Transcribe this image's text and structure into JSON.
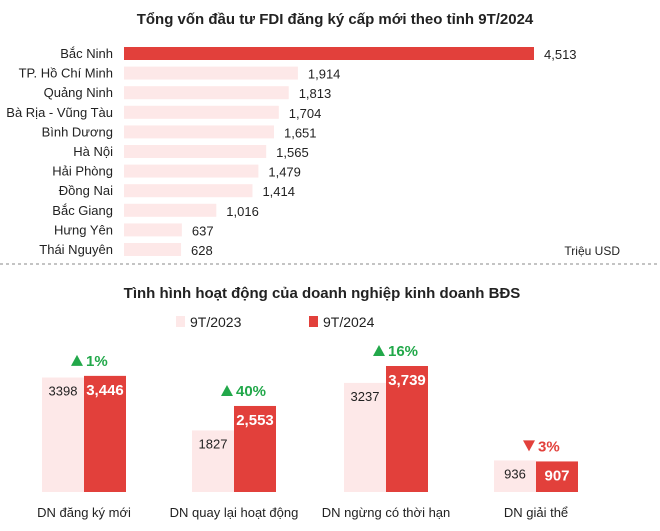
{
  "colors": {
    "accent": "#e2403b",
    "light": "#fde8e8",
    "up": "#22a84a",
    "down": "#e2403b",
    "divider": "#888888"
  },
  "chart_data": [
    {
      "type": "bar",
      "orientation": "horizontal",
      "title": "Tổng vốn đầu tư FDI đăng ký cấp mới theo tỉnh 9T/2024",
      "unit": "Triệu USD",
      "categories": [
        "Bắc Ninh",
        "TP. Hồ Chí Minh",
        "Quảng Ninh",
        "Bà Rịa - Vũng Tàu",
        "Bình Dương",
        "Hà Nội",
        "Hải Phòng",
        "Đồng Nai",
        "Bắc Giang",
        "Hưng Yên",
        "Thái Nguyên"
      ],
      "values": [
        4513,
        1914,
        1813,
        1704,
        1651,
        1565,
        1479,
        1414,
        1016,
        637,
        628
      ],
      "value_labels": [
        "4,513",
        "1,914",
        "1,813",
        "1,704",
        "1,651",
        "1,565",
        "1,479",
        "1,414",
        "1,016",
        "637",
        "628"
      ],
      "highlight_index": 0
    },
    {
      "type": "bar",
      "title": "Tình hình hoạt động của doanh nghiệp kinh doanh BĐS",
      "categories": [
        "DN đăng ký mới",
        "DN quay lại hoạt động",
        "DN ngừng có thời hạn",
        "DN giải thể"
      ],
      "series": [
        {
          "name": "9T/2023",
          "values": [
            3398,
            1827,
            3237,
            936
          ],
          "labels": [
            "3398",
            "1827",
            "3237",
            "936"
          ]
        },
        {
          "name": "9T/2024",
          "values": [
            3446,
            2553,
            3739,
            907
          ],
          "labels": [
            "3,446",
            "2,553",
            "3,739",
            "907"
          ]
        }
      ],
      "changes": [
        {
          "text": "1%",
          "direction": "up"
        },
        {
          "text": "40%",
          "direction": "up"
        },
        {
          "text": "16%",
          "direction": "up"
        },
        {
          "text": "3%",
          "direction": "down"
        }
      ]
    }
  ]
}
